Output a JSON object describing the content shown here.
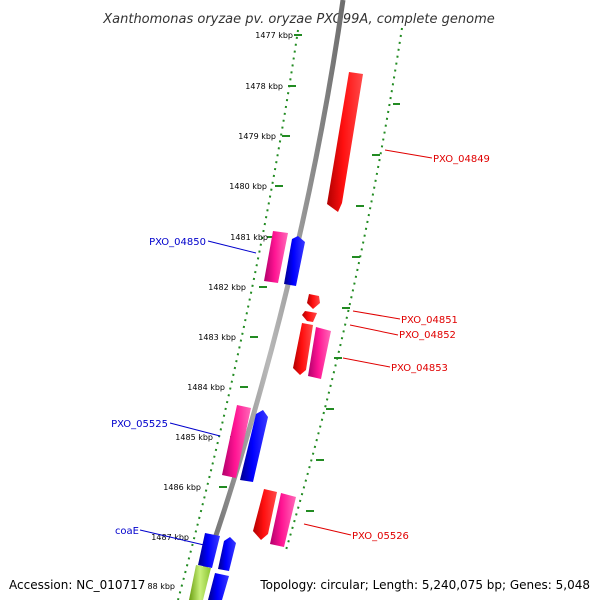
{
  "title": "Xanthomonas oryzae pv. oryzae PXO99A, complete genome",
  "accession": "Accession: NC_010717",
  "topology": "Topology: circular; Length: 5,240,075 bp; Genes: 5,048",
  "scale": {
    "ticks": [
      {
        "label": "1477 kbp"
      },
      {
        "label": "1478 kbp"
      },
      {
        "label": "1479 kbp"
      },
      {
        "label": "1480 kbp"
      },
      {
        "label": "1481 kbp"
      },
      {
        "label": "1482 kbp"
      },
      {
        "label": "1483 kbp"
      },
      {
        "label": "1484 kbp"
      },
      {
        "label": "1485 kbp"
      },
      {
        "label": "1486 kbp"
      },
      {
        "label": "1487 kbp"
      },
      {
        "label": "88 kbp"
      }
    ]
  },
  "gene_labels": [
    {
      "name": "PXO_04849",
      "color": "#e00000"
    },
    {
      "name": "PXO_04850",
      "color": "#0000cc"
    },
    {
      "name": "PXO_04851",
      "color": "#e00000"
    },
    {
      "name": "PXO_04852",
      "color": "#e00000"
    },
    {
      "name": "PXO_04853",
      "color": "#e00000"
    },
    {
      "name": "PXO_05525",
      "color": "#0000cc"
    },
    {
      "name": "PXO_05526",
      "color": "#e00000"
    },
    {
      "name": "coaE",
      "color": "#0000cc"
    }
  ],
  "colors": {
    "forward_strand": "#ff0000",
    "reverse_strand": "#0000ff",
    "other_feature": "#ff1493",
    "rna_feature": "#9acd32",
    "backbone": "#8c8c8c",
    "scale_ticks": "#228b22"
  }
}
